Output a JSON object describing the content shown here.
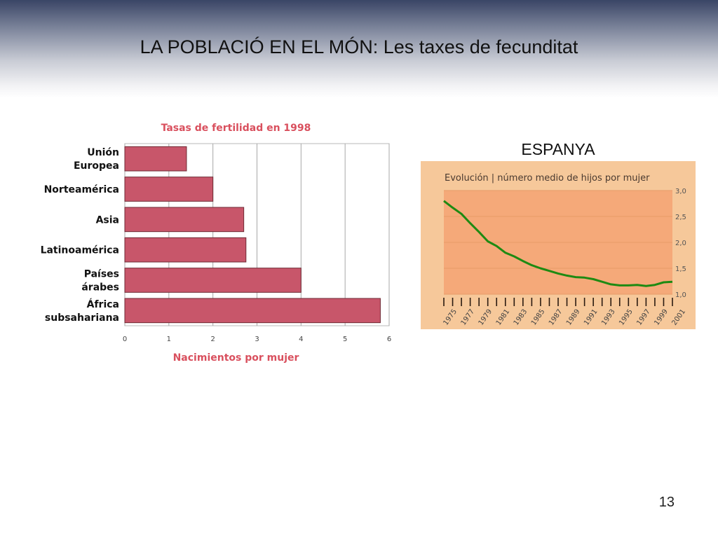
{
  "slide": {
    "title": "LA POBLACIÓ EN EL MÓN: Les taxes de fecunditat",
    "page_number": "13",
    "spain_label": "ESPANYA"
  },
  "colors": {
    "bar_fill": "#c8566a",
    "bar_text": "#d9505e",
    "line": "#1e8a12",
    "spain_bg_outer": "#f6c89a",
    "spain_bg_inner": "#f5a979"
  },
  "chart_data": [
    {
      "type": "bar",
      "orientation": "horizontal",
      "title": "Tasas de fertilidad en 1998",
      "xlabel": "Nacimientos por mujer",
      "ylabel": "",
      "categories": [
        "Unión\nEuropea",
        "Norteamérica",
        "Asia",
        "Latinoamérica",
        "Países\nárabes",
        "África\nsubsahariana"
      ],
      "values": [
        1.4,
        2.0,
        2.7,
        2.75,
        4.0,
        5.8
      ],
      "xlim": [
        0,
        6
      ],
      "xticks": [
        "0",
        "1",
        "2",
        "3",
        "4",
        "5",
        "6"
      ],
      "grid": true
    },
    {
      "type": "line",
      "title": "Evolución | número medio de hijos por mujer",
      "x": [
        1975,
        1976,
        1977,
        1978,
        1979,
        1980,
        1981,
        1982,
        1983,
        1984,
        1985,
        1986,
        1987,
        1988,
        1989,
        1990,
        1991,
        1992,
        1993,
        1994,
        1995,
        1996,
        1997,
        1998,
        1999,
        2000,
        2001
      ],
      "xticks": [
        "1975",
        "1977",
        "1979",
        "1981",
        "1983",
        "1985",
        "1987",
        "1989",
        "1991",
        "1993",
        "1995",
        "1997",
        "1999",
        "2001"
      ],
      "y": [
        2.8,
        2.67,
        2.55,
        2.37,
        2.2,
        2.02,
        1.93,
        1.8,
        1.73,
        1.64,
        1.56,
        1.5,
        1.45,
        1.4,
        1.36,
        1.33,
        1.32,
        1.29,
        1.24,
        1.19,
        1.17,
        1.17,
        1.18,
        1.16,
        1.18,
        1.23,
        1.24
      ],
      "ylim": [
        1.0,
        3.0
      ],
      "yticks": [
        "1,0",
        "1,5",
        "2,0",
        "2,5",
        "3,0"
      ],
      "grid": true
    }
  ]
}
